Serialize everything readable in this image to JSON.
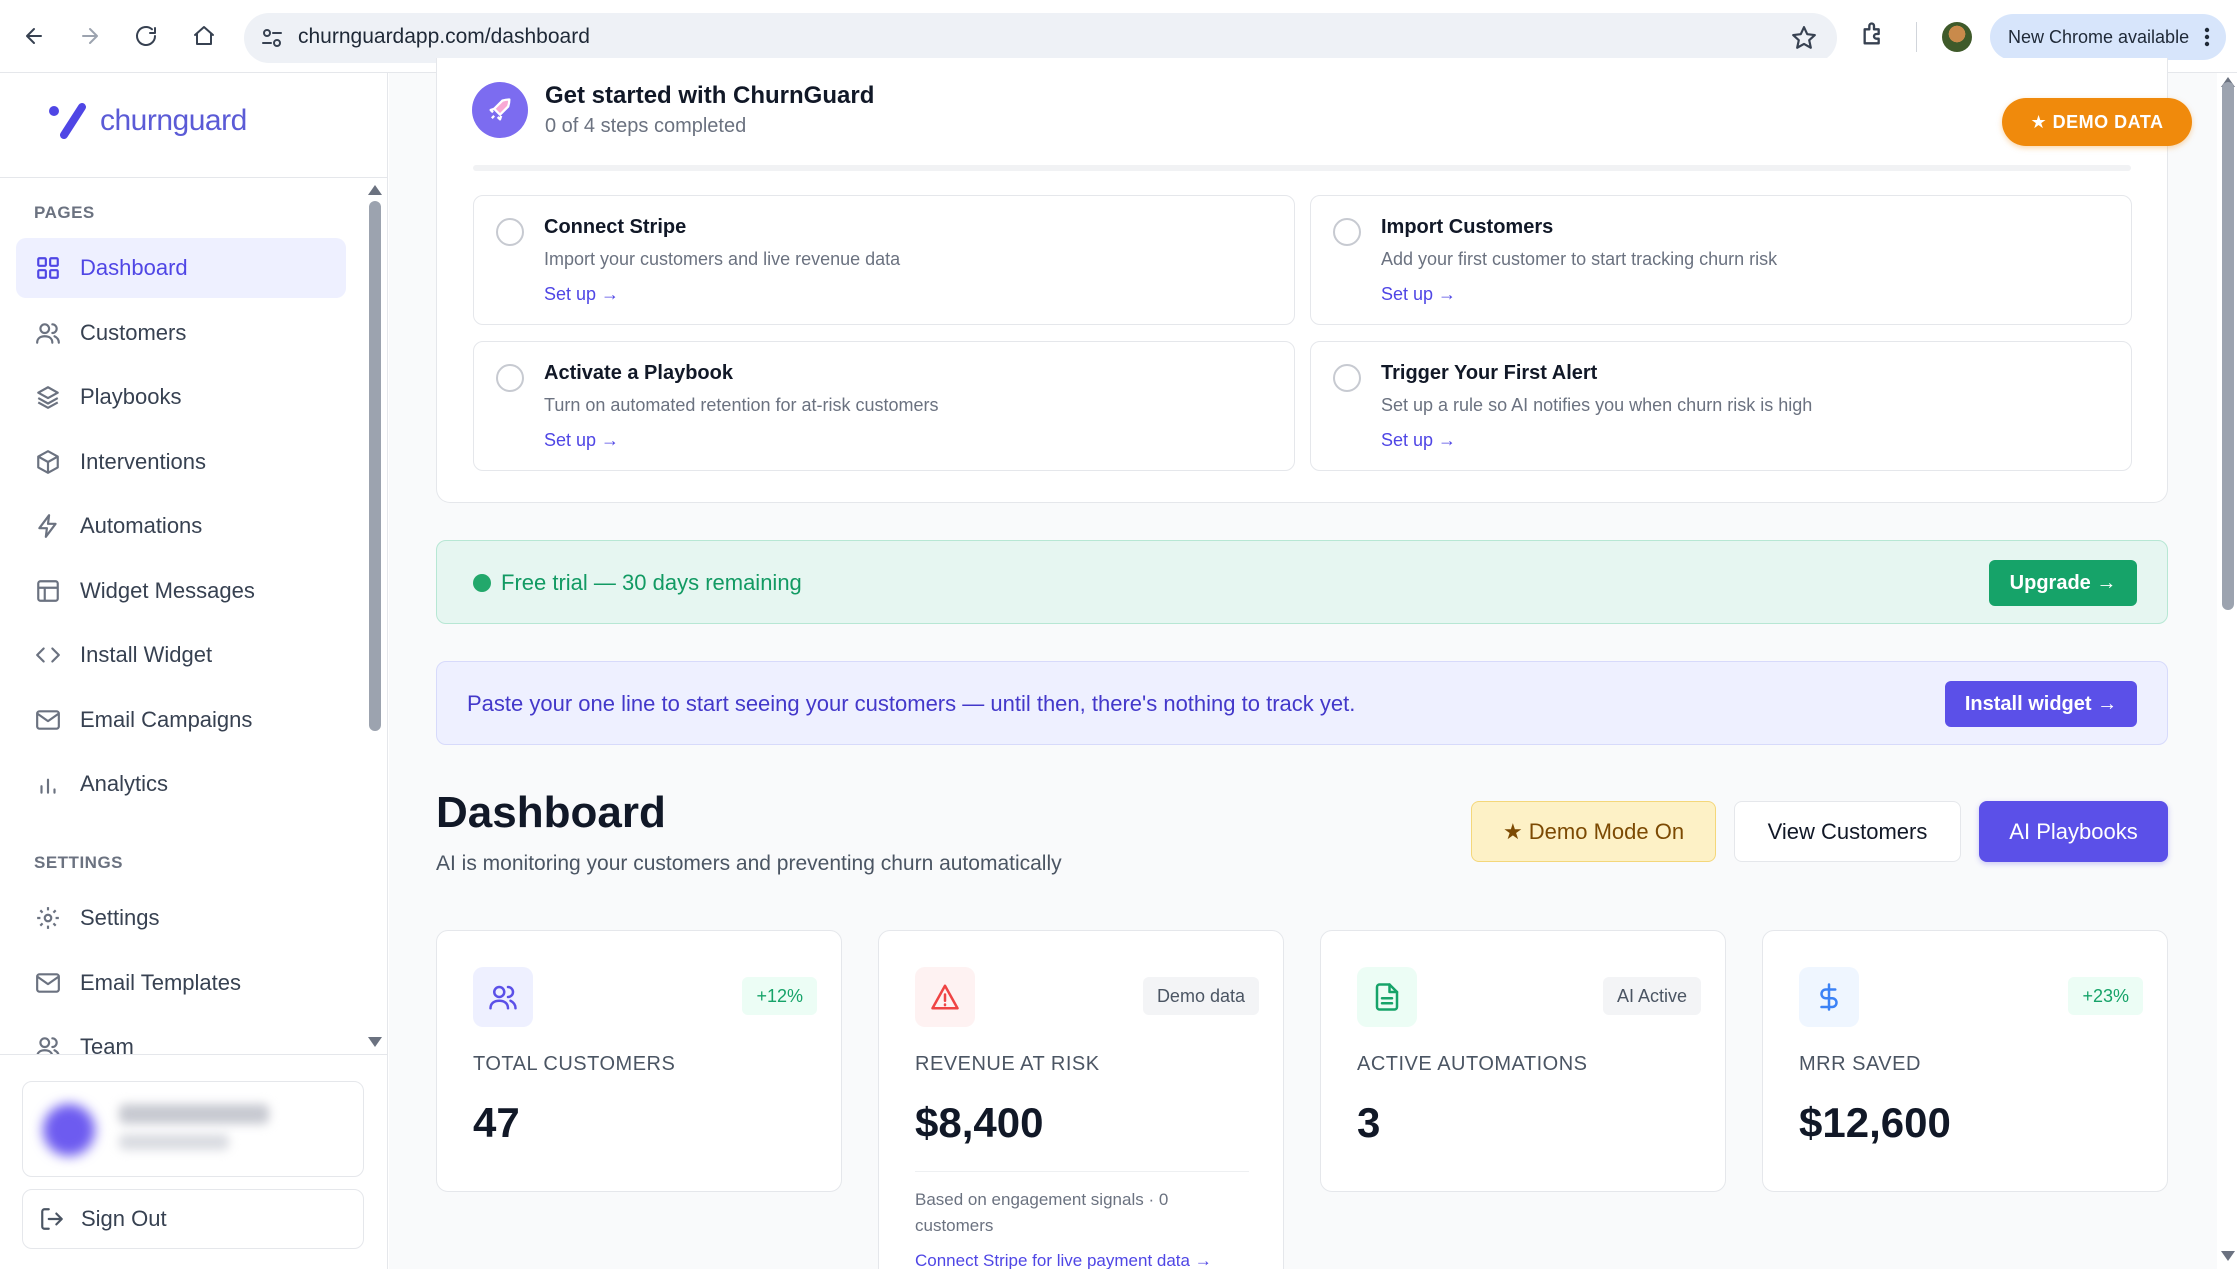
{
  "browser": {
    "url": "churnguardapp.com/dashboard",
    "update_label": "New Chrome available"
  },
  "sidebar": {
    "logo_text": "churnguard",
    "pages_label": "PAGES",
    "settings_label": "SETTINGS",
    "pages": [
      {
        "label": "Dashboard",
        "icon": "grid-icon"
      },
      {
        "label": "Customers",
        "icon": "users-icon"
      },
      {
        "label": "Playbooks",
        "icon": "layers-icon"
      },
      {
        "label": "Interventions",
        "icon": "box-icon"
      },
      {
        "label": "Automations",
        "icon": "bolt-icon"
      },
      {
        "label": "Widget Messages",
        "icon": "layout-icon"
      },
      {
        "label": "Install Widget",
        "icon": "code-icon"
      },
      {
        "label": "Email Campaigns",
        "icon": "mail-icon"
      },
      {
        "label": "Analytics",
        "icon": "bar-chart-icon"
      }
    ],
    "settings": [
      {
        "label": "Settings",
        "icon": "gear-icon"
      },
      {
        "label": "Email Templates",
        "icon": "mail-icon"
      },
      {
        "label": "Team",
        "icon": "users-icon"
      }
    ],
    "sign_out": "Sign Out"
  },
  "getting_started": {
    "title": "Get started with ChurnGuard",
    "subtitle": "0 of 4 steps completed",
    "demo_badge": "★ DEMO DATA",
    "progress": 0,
    "steps": [
      {
        "title": "Connect Stripe",
        "desc": "Import your customers and live revenue data",
        "link": "Set up →"
      },
      {
        "title": "Import Customers",
        "desc": "Add your first customer to start tracking churn risk",
        "link": "Set up →"
      },
      {
        "title": "Activate a Playbook",
        "desc": "Turn on automated retention for at-risk customers",
        "link": "Set up →"
      },
      {
        "title": "Trigger Your First Alert",
        "desc": "Set up a rule so AI notifies you when churn risk is high",
        "link": "Set up →"
      }
    ]
  },
  "trial": {
    "text": "Free trial — 30 days remaining",
    "button": "Upgrade →"
  },
  "install": {
    "text": "Paste your one line to start seeing your customers — until then, there's nothing to track yet.",
    "button": "Install widget →"
  },
  "dashboard": {
    "title": "Dashboard",
    "subtitle": "AI is monitoring your customers and preventing churn automatically",
    "btn_demo": "★ Demo Mode On",
    "btn_view": "View Customers",
    "btn_ai": "AI Playbooks"
  },
  "stats": [
    {
      "label": "TOTAL CUSTOMERS",
      "value": "47",
      "badge": "+12%",
      "icon": "users-icon"
    },
    {
      "label": "REVENUE AT RISK",
      "value": "$8,400",
      "badge": "Demo data",
      "icon": "alert-triangle-icon",
      "note": "Based on engagement signals · 0 customers",
      "link": "Connect Stripe for live payment data →"
    },
    {
      "label": "ACTIVE AUTOMATIONS",
      "value": "3",
      "badge": "AI Active",
      "icon": "document-icon"
    },
    {
      "label": "MRR SAVED",
      "value": "$12,600",
      "badge": "+23%",
      "icon": "dollar-icon"
    }
  ],
  "colors": {
    "accent": "#5b50e8",
    "success": "#16a369",
    "warning": "#f08a0c",
    "danger": "#ef4444"
  }
}
